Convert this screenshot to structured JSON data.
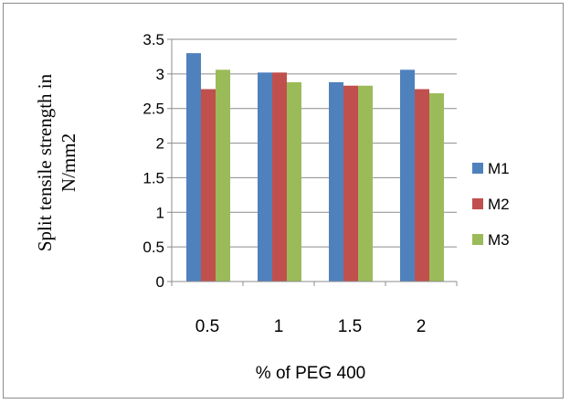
{
  "chart_data": {
    "type": "bar",
    "categories": [
      "0.5",
      "1",
      "1.5",
      "2"
    ],
    "series": [
      {
        "name": "M1",
        "values": [
          3.3,
          3.02,
          2.88,
          3.06
        ],
        "color": "#4F81BD"
      },
      {
        "name": "M2",
        "values": [
          2.78,
          3.02,
          2.83,
          2.78
        ],
        "color": "#C0504D"
      },
      {
        "name": "M3",
        "values": [
          3.06,
          2.88,
          2.83,
          2.72
        ],
        "color": "#9BBB59"
      }
    ],
    "title": "",
    "xlabel": "% of PEG 400",
    "ylabel_lines": [
      "Split tensile strength  in",
      "N/mm2"
    ],
    "ylim": [
      0,
      3.5
    ],
    "yticks": [
      "0",
      "0.5",
      "1",
      "1.5",
      "2",
      "2.5",
      "3",
      "3.5"
    ],
    "grid": true,
    "legend_position": "right"
  }
}
